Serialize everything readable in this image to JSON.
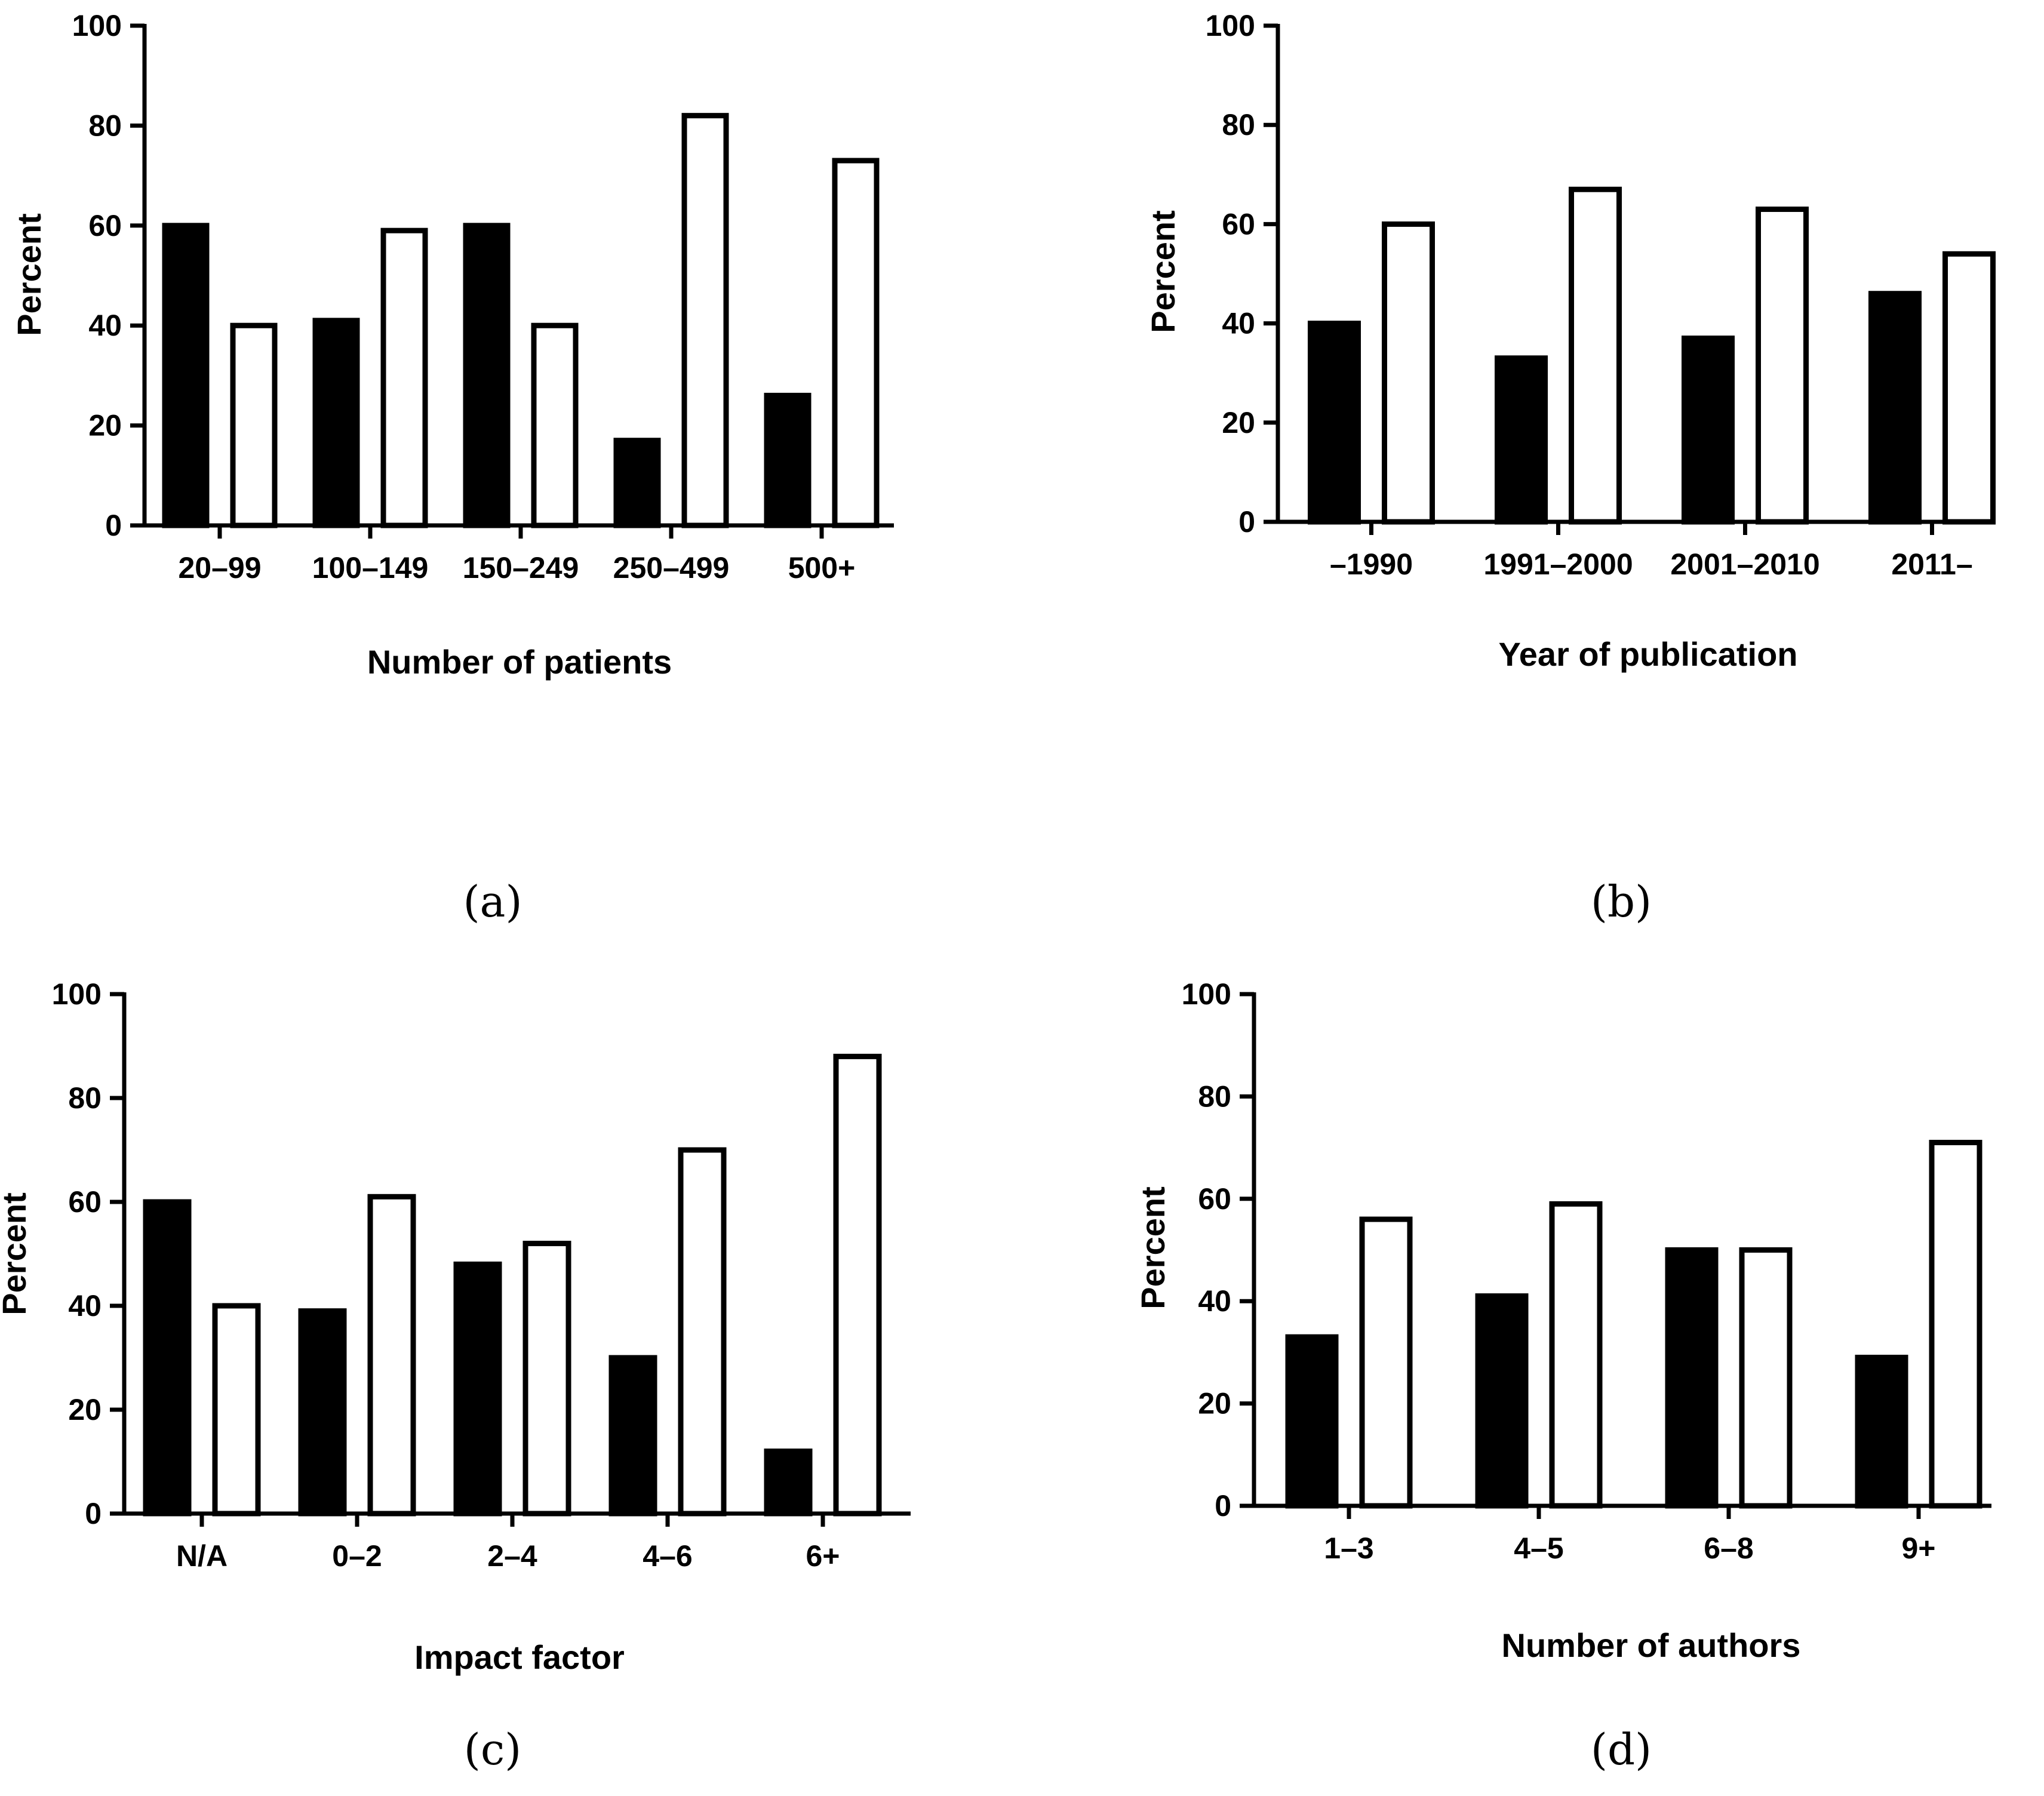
{
  "chart_data": [
    {
      "type": "bar",
      "panel_label": "(a)",
      "categories": [
        "20–99",
        "100–149",
        "150–249",
        "250–499",
        "500+"
      ],
      "series": [
        {
          "name": "black",
          "color": "#000000",
          "values": [
            60,
            41,
            60,
            17,
            26
          ]
        },
        {
          "name": "white",
          "color": "#ffffff",
          "values": [
            40,
            59,
            40,
            82,
            73
          ]
        }
      ],
      "xlabel": "Number of patients",
      "ylabel": "Percent",
      "ylim": [
        0,
        100
      ],
      "yticks": [
        0,
        20,
        40,
        60,
        80,
        100
      ]
    },
    {
      "type": "bar",
      "panel_label": "(b)",
      "categories": [
        "–1990",
        "1991–2000",
        "2001–2010",
        "2011–"
      ],
      "series": [
        {
          "name": "black",
          "color": "#000000",
          "values": [
            40,
            33,
            37,
            46
          ]
        },
        {
          "name": "white",
          "color": "#ffffff",
          "values": [
            60,
            67,
            63,
            54
          ]
        }
      ],
      "xlabel": "Year of publication",
      "ylabel": "Percent",
      "ylim": [
        0,
        100
      ],
      "yticks": [
        0,
        20,
        40,
        60,
        80,
        100
      ]
    },
    {
      "type": "bar",
      "panel_label": "(c)",
      "categories": [
        "N/A",
        "0–2",
        "2–4",
        "4–6",
        "6+"
      ],
      "series": [
        {
          "name": "black",
          "color": "#000000",
          "values": [
            60,
            39,
            48,
            30,
            12
          ]
        },
        {
          "name": "white",
          "color": "#ffffff",
          "values": [
            40,
            61,
            52,
            70,
            88
          ]
        }
      ],
      "xlabel": "Impact factor",
      "ylabel": "Percent",
      "ylim": [
        0,
        100
      ],
      "yticks": [
        0,
        20,
        40,
        60,
        80,
        100
      ]
    },
    {
      "type": "bar",
      "panel_label": "(d)",
      "categories": [
        "1–3",
        "4–5",
        "6–8",
        "9+"
      ],
      "series": [
        {
          "name": "black",
          "color": "#000000",
          "values": [
            33,
            41,
            50,
            29
          ]
        },
        {
          "name": "white",
          "color": "#ffffff",
          "values": [
            56,
            59,
            50,
            71
          ]
        }
      ],
      "xlabel": "Number of authors",
      "ylabel": "Percent",
      "ylim": [
        0,
        100
      ],
      "yticks": [
        0,
        20,
        40,
        60,
        80,
        100
      ]
    }
  ]
}
